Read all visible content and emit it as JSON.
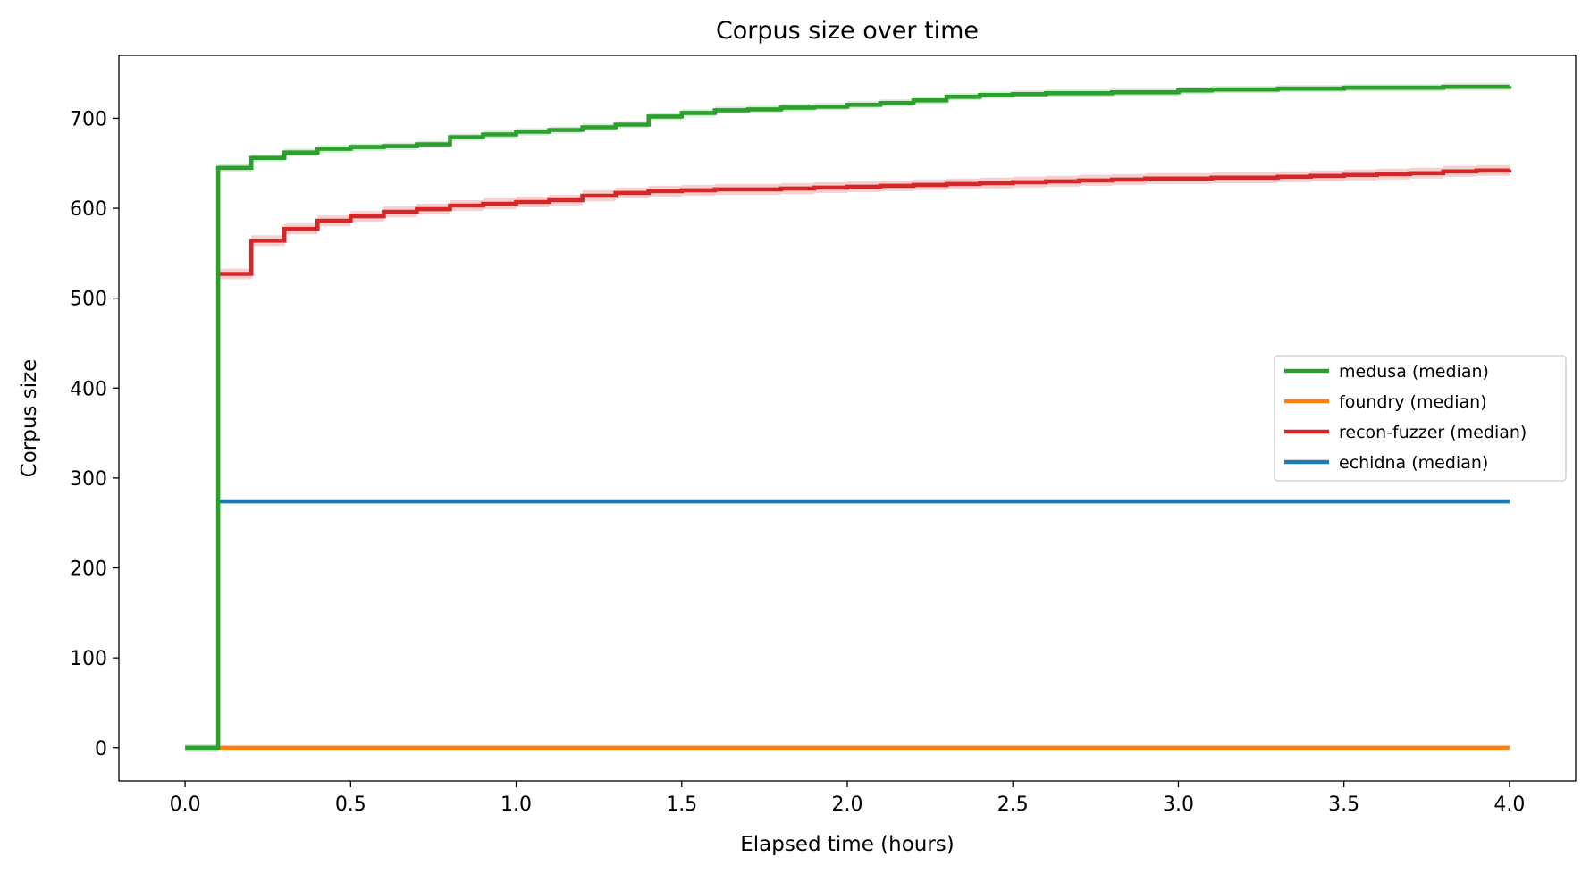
{
  "chart_data": {
    "type": "line",
    "title": "Corpus size over time",
    "xlabel": "Elapsed time (hours)",
    "ylabel": "Corpus size",
    "xlim": [
      -0.2,
      4.2
    ],
    "ylim": [
      -37,
      770
    ],
    "xticks": [
      0.0,
      0.5,
      1.0,
      1.5,
      2.0,
      2.5,
      3.0,
      3.5,
      4.0
    ],
    "xtick_labels": [
      "0.0",
      "0.5",
      "1.0",
      "1.5",
      "2.0",
      "2.5",
      "3.0",
      "3.5",
      "4.0"
    ],
    "yticks": [
      0,
      100,
      200,
      300,
      400,
      500,
      600,
      700
    ],
    "ytick_labels": [
      "0",
      "100",
      "200",
      "300",
      "400",
      "500",
      "600",
      "700"
    ],
    "grid": false,
    "legend_position": "center-right",
    "series": [
      {
        "name": "medusa (median)",
        "color": "#2ca02c",
        "step": true,
        "x": [
          0.0,
          0.1,
          0.2,
          0.3,
          0.4,
          0.5,
          0.6,
          0.7,
          0.8,
          0.9,
          1.0,
          1.1,
          1.2,
          1.3,
          1.4,
          1.5,
          1.6,
          1.7,
          1.8,
          1.9,
          2.0,
          2.1,
          2.2,
          2.3,
          2.4,
          2.5,
          2.6,
          2.7,
          2.8,
          2.9,
          3.0,
          3.1,
          3.2,
          3.3,
          3.4,
          3.5,
          3.6,
          3.7,
          3.8,
          3.9,
          4.0
        ],
        "y": [
          0,
          645,
          656,
          662,
          666,
          668,
          669,
          671,
          679,
          682,
          685,
          687,
          690,
          693,
          702,
          706,
          709,
          710,
          712,
          713,
          715,
          717,
          720,
          724,
          726,
          727,
          728,
          728,
          729,
          729,
          731,
          732,
          732,
          733,
          733,
          734,
          734,
          734,
          735,
          735,
          736
        ],
        "band": 4
      },
      {
        "name": "foundry (median)",
        "color": "#ff7f0e",
        "step": true,
        "x": [
          0.1,
          4.0
        ],
        "y": [
          0,
          0
        ],
        "band": 0
      },
      {
        "name": "recon-fuzzer (median)",
        "color": "#d62728",
        "step": true,
        "x": [
          0.1,
          0.2,
          0.3,
          0.4,
          0.5,
          0.6,
          0.7,
          0.8,
          0.9,
          1.0,
          1.1,
          1.2,
          1.3,
          1.4,
          1.5,
          1.6,
          1.7,
          1.8,
          1.9,
          2.0,
          2.1,
          2.2,
          2.3,
          2.4,
          2.5,
          2.6,
          2.7,
          2.8,
          2.9,
          3.0,
          3.1,
          3.2,
          3.3,
          3.4,
          3.5,
          3.6,
          3.7,
          3.8,
          3.9,
          4.0
        ],
        "y": [
          527,
          564,
          577,
          586,
          591,
          596,
          599,
          603,
          605,
          607,
          609,
          614,
          617,
          619,
          620,
          621,
          621,
          622,
          623,
          624,
          625,
          626,
          627,
          628,
          629,
          630,
          631,
          632,
          633,
          633,
          634,
          634,
          635,
          636,
          637,
          638,
          639,
          641,
          642,
          643
        ],
        "band": 6
      },
      {
        "name": "echidna (median)",
        "color": "#1f77b4",
        "step": true,
        "x": [
          0.1,
          4.0
        ],
        "y": [
          274,
          274
        ],
        "band": 0
      }
    ]
  }
}
